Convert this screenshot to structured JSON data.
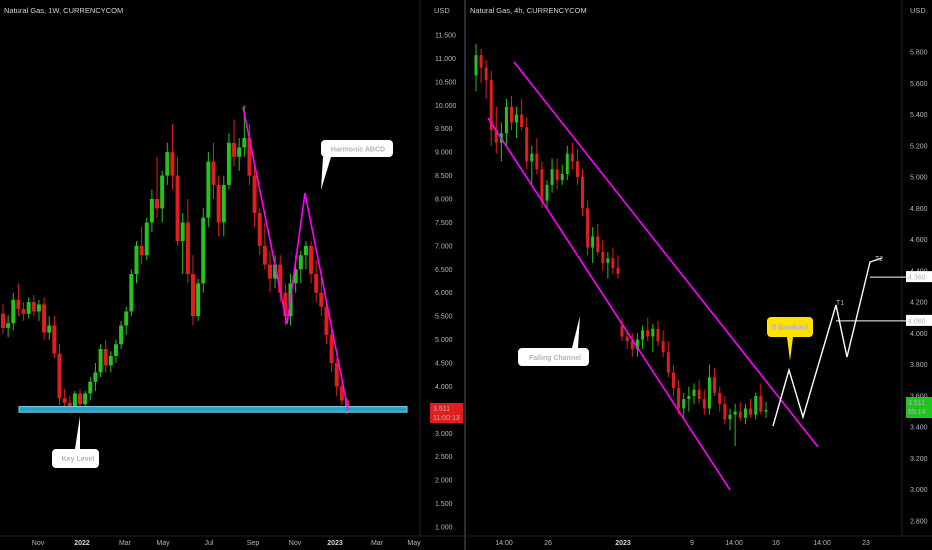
{
  "colors": {
    "up": "#26c21f",
    "down": "#e01e1e",
    "pattern": "#ff00ff",
    "key_level": "#2aa0c8",
    "background": "#000000",
    "annotation_bubble": "#ffffff",
    "breakout_bubble": "#ffe000",
    "price_tag_red": "#e01e1e",
    "price_tag_green": "#1fc21f",
    "target_tag": "#ffffff"
  },
  "chart_data": [
    {
      "type": "candlestick",
      "title": "Natural Gas, 1W, CURRENCYCOM",
      "currency": "USD",
      "y_ticks": [
        "11.500",
        "11.000",
        "10.500",
        "10.000",
        "9.500",
        "9.000",
        "8.500",
        "8.000",
        "7.500",
        "7.000",
        "6.500",
        "6.000",
        "5.500",
        "5.000",
        "4.500",
        "4.000",
        "3.500",
        "3.000",
        "2.500",
        "2.000",
        "1.500",
        "1.000"
      ],
      "y_tick_values": [
        11.5,
        11,
        10.5,
        10,
        9.5,
        9,
        8.5,
        8,
        7.5,
        7,
        6.5,
        6,
        5.5,
        5,
        4.5,
        4,
        3.5,
        3,
        2.5,
        2,
        1.5,
        1
      ],
      "ylim": [
        0.8,
        11.8
      ],
      "x_ticks": [
        {
          "label": "Nov",
          "bold": false
        },
        {
          "label": "2022",
          "bold": true
        },
        {
          "label": "Mar",
          "bold": false
        },
        {
          "label": "May",
          "bold": false
        },
        {
          "label": "Jul",
          "bold": false
        },
        {
          "label": "Sep",
          "bold": false
        },
        {
          "label": "Nov",
          "bold": false
        },
        {
          "label": "2023",
          "bold": true
        },
        {
          "label": "Mar",
          "bold": false
        },
        {
          "label": "May",
          "bold": false
        }
      ],
      "price_tag": {
        "value": "3.511",
        "countdown": "11:00:13"
      },
      "key_level": {
        "low": 3.45,
        "high": 3.57,
        "label": "Key Level"
      },
      "pattern": {
        "name": "Harmonic ABCD",
        "points": [
          {
            "bar": 0,
            "price": 10.0
          },
          {
            "bar": 10,
            "price": 5.5
          },
          {
            "bar": 16,
            "price": 8.1
          },
          {
            "bar": 25,
            "price": 3.5
          }
        ]
      },
      "ohlc": [
        [
          5.55,
          5.75,
          5.12,
          5.25
        ],
        [
          5.25,
          5.52,
          5.05,
          5.35
        ],
        [
          5.35,
          6.0,
          5.2,
          5.85
        ],
        [
          5.85,
          6.2,
          5.5,
          5.65
        ],
        [
          5.65,
          5.8,
          5.4,
          5.55
        ],
        [
          5.55,
          5.9,
          5.45,
          5.8
        ],
        [
          5.8,
          5.95,
          5.5,
          5.6
        ],
        [
          5.6,
          5.85,
          5.4,
          5.75
        ],
        [
          5.75,
          5.9,
          5.0,
          5.15
        ],
        [
          5.15,
          5.5,
          5.0,
          5.3
        ],
        [
          5.3,
          5.5,
          4.6,
          4.7
        ],
        [
          4.7,
          4.9,
          3.6,
          3.75
        ],
        [
          3.75,
          3.95,
          3.55,
          3.65
        ],
        [
          3.65,
          3.8,
          3.5,
          3.55
        ],
        [
          3.55,
          3.9,
          3.5,
          3.85
        ],
        [
          3.85,
          3.95,
          3.55,
          3.62
        ],
        [
          3.62,
          3.9,
          3.5,
          3.85
        ],
        [
          3.85,
          4.2,
          3.7,
          4.1
        ],
        [
          4.1,
          4.5,
          3.9,
          4.3
        ],
        [
          4.3,
          4.9,
          4.2,
          4.8
        ],
        [
          4.8,
          5.0,
          4.3,
          4.45
        ],
        [
          4.45,
          4.75,
          4.3,
          4.65
        ],
        [
          4.65,
          5.0,
          4.5,
          4.9
        ],
        [
          4.9,
          5.4,
          4.8,
          5.3
        ],
        [
          5.3,
          5.7,
          5.1,
          5.6
        ],
        [
          5.6,
          6.5,
          5.5,
          6.4
        ],
        [
          6.4,
          7.1,
          6.2,
          7.0
        ],
        [
          7.0,
          7.4,
          6.6,
          6.8
        ],
        [
          6.8,
          7.6,
          6.7,
          7.5
        ],
        [
          7.5,
          8.2,
          7.3,
          8.0
        ],
        [
          8.0,
          8.9,
          7.6,
          7.8
        ],
        [
          7.8,
          8.6,
          7.5,
          8.5
        ],
        [
          8.5,
          9.2,
          8.3,
          9.0
        ],
        [
          9.0,
          9.6,
          8.2,
          8.5
        ],
        [
          8.5,
          8.9,
          7.0,
          7.1
        ],
        [
          7.1,
          7.7,
          6.4,
          7.5
        ],
        [
          7.5,
          8.0,
          6.2,
          6.4
        ],
        [
          6.4,
          6.8,
          5.3,
          5.5
        ],
        [
          5.5,
          6.3,
          5.4,
          6.2
        ],
        [
          6.2,
          7.8,
          6.0,
          7.6
        ],
        [
          7.6,
          9.0,
          7.4,
          8.8
        ],
        [
          8.8,
          9.2,
          8.0,
          8.3
        ],
        [
          8.3,
          8.5,
          7.2,
          7.5
        ],
        [
          7.5,
          8.5,
          7.2,
          8.3
        ],
        [
          8.3,
          9.4,
          8.2,
          9.2
        ],
        [
          9.2,
          9.7,
          8.7,
          8.9
        ],
        [
          8.9,
          9.3,
          8.6,
          9.1
        ],
        [
          9.1,
          10.0,
          8.9,
          9.3
        ],
        [
          9.3,
          9.6,
          8.3,
          8.5
        ],
        [
          8.5,
          8.7,
          7.4,
          7.7
        ],
        [
          7.7,
          7.8,
          6.8,
          7.0
        ],
        [
          7.0,
          7.5,
          6.5,
          6.6
        ],
        [
          6.6,
          6.9,
          6.0,
          6.3
        ],
        [
          6.3,
          6.8,
          6.1,
          6.6
        ],
        [
          6.6,
          6.8,
          5.8,
          6.0
        ],
        [
          6.0,
          6.2,
          5.3,
          5.5
        ],
        [
          5.5,
          6.4,
          5.3,
          6.2
        ],
        [
          6.2,
          6.8,
          6.0,
          6.5
        ],
        [
          6.5,
          6.9,
          6.2,
          6.8
        ],
        [
          6.8,
          7.1,
          6.5,
          7.0
        ],
        [
          7.0,
          7.1,
          6.2,
          6.4
        ],
        [
          6.4,
          6.7,
          5.8,
          6.0
        ],
        [
          6.0,
          6.3,
          5.5,
          5.7
        ],
        [
          5.7,
          5.8,
          4.9,
          5.1
        ],
        [
          5.1,
          5.2,
          4.3,
          4.5
        ],
        [
          4.5,
          4.6,
          3.8,
          4.0
        ],
        [
          4.0,
          4.1,
          3.6,
          3.7
        ],
        [
          3.7,
          3.75,
          3.4,
          3.51
        ]
      ]
    },
    {
      "type": "candlestick",
      "title": "Natural Gas, 4h, CURRENCYCOM",
      "currency": "USD",
      "y_ticks": [
        "5.800",
        "5.600",
        "5.400",
        "5.200",
        "5.000",
        "4.800",
        "4.600",
        "4.400",
        "4.200",
        "4.000",
        "3.800",
        "3.600",
        "3.400",
        "3.200",
        "3.000",
        "2.800"
      ],
      "y_tick_values": [
        5.8,
        5.6,
        5.4,
        5.2,
        5.0,
        4.8,
        4.6,
        4.4,
        4.2,
        4.0,
        3.8,
        3.6,
        3.4,
        3.2,
        3.0,
        2.8
      ],
      "ylim": [
        2.72,
        5.95
      ],
      "x_ticks": [
        {
          "label": "14:00",
          "bold": false
        },
        {
          "label": "26",
          "bold": false
        },
        {
          "label": "2023",
          "bold": true
        },
        {
          "label": "9",
          "bold": false
        },
        {
          "label": "14:00",
          "bold": false
        },
        {
          "label": "16",
          "bold": false
        },
        {
          "label": "14:00",
          "bold": false
        },
        {
          "label": "23",
          "bold": false
        }
      ],
      "price_tag": {
        "value": "3.511",
        "countdown": "55:14"
      },
      "channel_label": "Falling Channel",
      "breakout_label": "If Breakout",
      "targets": [
        {
          "name": "T1",
          "price": 4.08,
          "tag": "4.080"
        },
        {
          "name": "T2",
          "price": 4.36,
          "tag": "4.360"
        }
      ],
      "ohlc": [
        [
          5.65,
          5.85,
          5.55,
          5.78
        ],
        [
          5.78,
          5.82,
          5.6,
          5.7
        ],
        [
          5.7,
          5.75,
          5.5,
          5.62
        ],
        [
          5.62,
          5.68,
          5.2,
          5.3
        ],
        [
          5.3,
          5.45,
          5.15,
          5.22
        ],
        [
          5.22,
          5.35,
          5.1,
          5.28
        ],
        [
          5.28,
          5.5,
          5.2,
          5.45
        ],
        [
          5.45,
          5.52,
          5.3,
          5.35
        ],
        [
          5.35,
          5.45,
          5.25,
          5.4
        ],
        [
          5.4,
          5.5,
          5.3,
          5.32
        ],
        [
          5.32,
          5.38,
          5.05,
          5.1
        ],
        [
          5.1,
          5.2,
          4.95,
          5.15
        ],
        [
          5.15,
          5.25,
          5.02,
          5.05
        ],
        [
          5.05,
          5.1,
          4.8,
          4.85
        ],
        [
          4.85,
          4.98,
          4.8,
          4.95
        ],
        [
          4.95,
          5.12,
          4.9,
          5.05
        ],
        [
          5.05,
          5.12,
          4.92,
          4.98
        ],
        [
          4.98,
          5.08,
          4.95,
          5.02
        ],
        [
          5.02,
          5.2,
          4.98,
          5.15
        ],
        [
          5.15,
          5.22,
          5.05,
          5.1
        ],
        [
          5.1,
          5.18,
          4.95,
          5.0
        ],
        [
          5.0,
          5.05,
          4.75,
          4.8
        ],
        [
          4.8,
          4.85,
          4.5,
          4.55
        ],
        [
          4.55,
          4.68,
          4.45,
          4.62
        ],
        [
          4.62,
          4.7,
          4.5,
          4.52
        ],
        [
          4.52,
          4.6,
          4.4,
          4.45
        ],
        [
          4.45,
          4.52,
          4.35,
          4.48
        ],
        [
          4.48,
          4.55,
          4.38,
          4.42
        ],
        [
          4.42,
          4.5,
          4.35,
          4.38
        ],
        [
          4.05,
          4.1,
          3.95,
          3.98
        ],
        [
          3.98,
          4.02,
          3.9,
          3.95
        ],
        [
          3.95,
          4.0,
          3.85,
          3.9
        ],
        [
          3.9,
          4.0,
          3.85,
          3.96
        ],
        [
          3.96,
          4.05,
          3.9,
          4.02
        ],
        [
          4.02,
          4.1,
          3.95,
          3.98
        ],
        [
          3.98,
          4.06,
          3.88,
          4.03
        ],
        [
          4.03,
          4.08,
          3.92,
          3.95
        ],
        [
          3.95,
          4.02,
          3.85,
          3.88
        ],
        [
          3.88,
          3.95,
          3.72,
          3.75
        ],
        [
          3.75,
          3.8,
          3.6,
          3.65
        ],
        [
          3.65,
          3.7,
          3.48,
          3.52
        ],
        [
          3.52,
          3.62,
          3.45,
          3.58
        ],
        [
          3.58,
          3.66,
          3.5,
          3.6
        ],
        [
          3.6,
          3.68,
          3.55,
          3.64
        ],
        [
          3.64,
          3.7,
          3.55,
          3.58
        ],
        [
          3.58,
          3.64,
          3.48,
          3.52
        ],
        [
          3.52,
          3.8,
          3.48,
          3.72
        ],
        [
          3.72,
          3.78,
          3.6,
          3.62
        ],
        [
          3.62,
          3.66,
          3.5,
          3.55
        ],
        [
          3.55,
          3.6,
          3.42,
          3.45
        ],
        [
          3.45,
          3.52,
          3.38,
          3.48
        ],
        [
          3.48,
          3.55,
          3.28,
          3.5
        ],
        [
          3.5,
          3.56,
          3.44,
          3.46
        ],
        [
          3.46,
          3.55,
          3.42,
          3.52
        ],
        [
          3.52,
          3.58,
          3.46,
          3.48
        ],
        [
          3.48,
          3.62,
          3.45,
          3.6
        ],
        [
          3.6,
          3.68,
          3.48,
          3.5
        ],
        [
          3.5,
          3.56,
          3.46,
          3.51
        ]
      ]
    }
  ]
}
